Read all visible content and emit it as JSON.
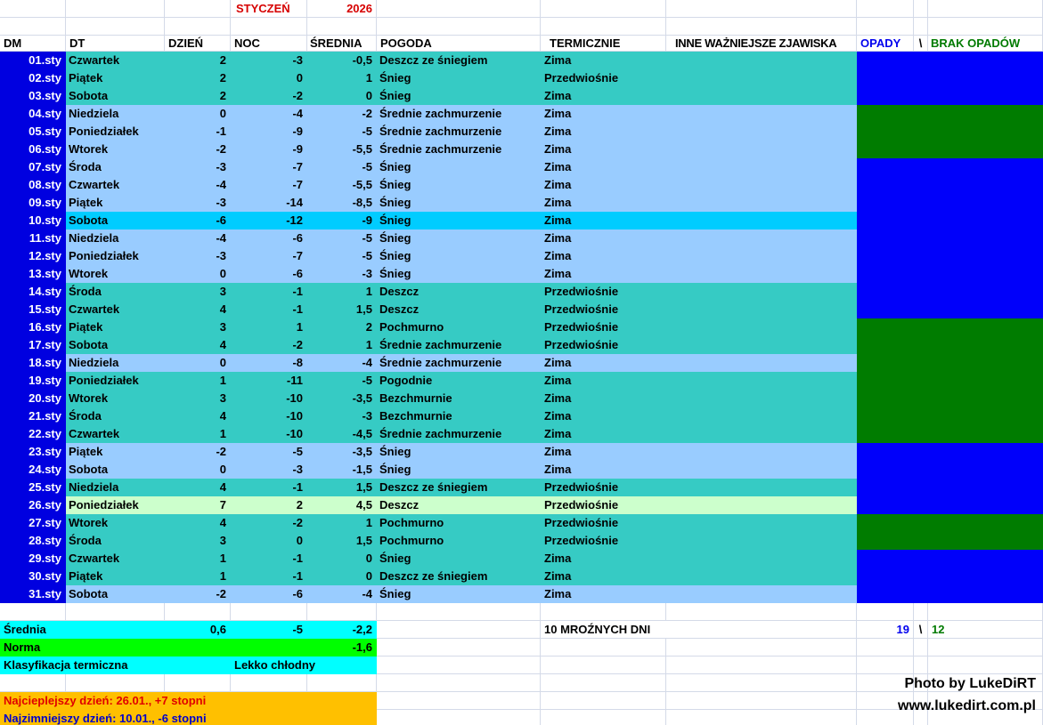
{
  "title": {
    "month": "STYCZEŃ",
    "year": "2026"
  },
  "columns": {
    "dm": "DM",
    "dt": "DT",
    "day": "DZIEŃ",
    "night": "NOC",
    "avg": "ŚREDNIA",
    "weather": "POGODA",
    "thermal": "TERMICZNIE",
    "other": "INNE WAŻNIEJSZE ZJAWISKA",
    "precip": "OPADY",
    "sep": "\\",
    "no_precip": "BRAK OPADÓW"
  },
  "days": [
    {
      "dm": "01.sty",
      "dt": "Czwartek",
      "day": "2",
      "night": "-3",
      "avg": "-0,5",
      "weather": "Deszcz ze śniegiem",
      "thermal": "Zima",
      "row": "teal",
      "precip": "rain"
    },
    {
      "dm": "02.sty",
      "dt": "Piątek",
      "day": "2",
      "night": "0",
      "avg": "1",
      "weather": "Śnieg",
      "thermal": "Przedwiośnie",
      "row": "teal",
      "precip": "rain"
    },
    {
      "dm": "03.sty",
      "dt": "Sobota",
      "day": "2",
      "night": "-2",
      "avg": "0",
      "weather": "Śnieg",
      "thermal": "Zima",
      "row": "teal",
      "precip": "rain"
    },
    {
      "dm": "04.sty",
      "dt": "Niedziela",
      "day": "0",
      "night": "-4",
      "avg": "-2",
      "weather": "Średnie zachmurzenie",
      "thermal": "Zima",
      "row": "lightblue",
      "precip": "dry"
    },
    {
      "dm": "05.sty",
      "dt": "Poniedziałek",
      "day": "-1",
      "night": "-9",
      "avg": "-5",
      "weather": "Średnie zachmurzenie",
      "thermal": "Zima",
      "row": "lightblue",
      "precip": "dry"
    },
    {
      "dm": "06.sty",
      "dt": "Wtorek",
      "day": "-2",
      "night": "-9",
      "avg": "-5,5",
      "weather": "Średnie zachmurzenie",
      "thermal": "Zima",
      "row": "lightblue",
      "precip": "dry"
    },
    {
      "dm": "07.sty",
      "dt": "Środa",
      "day": "-3",
      "night": "-7",
      "avg": "-5",
      "weather": "Śnieg",
      "thermal": "Zima",
      "row": "lightblue",
      "precip": "rain"
    },
    {
      "dm": "08.sty",
      "dt": "Czwartek",
      "day": "-4",
      "night": "-7",
      "avg": "-5,5",
      "weather": "Śnieg",
      "thermal": "Zima",
      "row": "lightblue",
      "precip": "rain"
    },
    {
      "dm": "09.sty",
      "dt": "Piątek",
      "day": "-3",
      "night": "-14",
      "avg": "-8,5",
      "weather": "Śnieg",
      "thermal": "Zima",
      "row": "lightblue",
      "precip": "rain"
    },
    {
      "dm": "10.sty",
      "dt": "Sobota",
      "day": "-6",
      "night": "-12",
      "avg": "-9",
      "weather": "Śnieg",
      "thermal": "Zima",
      "row": "cyan",
      "precip": "rain"
    },
    {
      "dm": "11.sty",
      "dt": "Niedziela",
      "day": "-4",
      "night": "-6",
      "avg": "-5",
      "weather": "Śnieg",
      "thermal": "Zima",
      "row": "lightblue",
      "precip": "rain"
    },
    {
      "dm": "12.sty",
      "dt": "Poniedziałek",
      "day": "-3",
      "night": "-7",
      "avg": "-5",
      "weather": "Śnieg",
      "thermal": "Zima",
      "row": "lightblue",
      "precip": "rain"
    },
    {
      "dm": "13.sty",
      "dt": "Wtorek",
      "day": "0",
      "night": "-6",
      "avg": "-3",
      "weather": "Śnieg",
      "thermal": "Zima",
      "row": "lightblue",
      "precip": "rain"
    },
    {
      "dm": "14.sty",
      "dt": "Środa",
      "day": "3",
      "night": "-1",
      "avg": "1",
      "weather": "Deszcz",
      "thermal": "Przedwiośnie",
      "row": "teal",
      "precip": "rain"
    },
    {
      "dm": "15.sty",
      "dt": "Czwartek",
      "day": "4",
      "night": "-1",
      "avg": "1,5",
      "weather": "Deszcz",
      "thermal": "Przedwiośnie",
      "row": "teal",
      "precip": "rain"
    },
    {
      "dm": "16.sty",
      "dt": "Piątek",
      "day": "3",
      "night": "1",
      "avg": "2",
      "weather": "Pochmurno",
      "thermal": "Przedwiośnie",
      "row": "teal",
      "precip": "dry"
    },
    {
      "dm": "17.sty",
      "dt": "Sobota",
      "day": "4",
      "night": "-2",
      "avg": "1",
      "weather": "Średnie zachmurzenie",
      "thermal": "Przedwiośnie",
      "row": "teal",
      "precip": "dry"
    },
    {
      "dm": "18.sty",
      "dt": "Niedziela",
      "day": "0",
      "night": "-8",
      "avg": "-4",
      "weather": "Średnie zachmurzenie",
      "thermal": "Zima",
      "row": "lightblue",
      "precip": "dry"
    },
    {
      "dm": "19.sty",
      "dt": "Poniedziałek",
      "day": "1",
      "night": "-11",
      "avg": "-5",
      "weather": "Pogodnie",
      "thermal": "Zima",
      "row": "teal",
      "precip": "dry"
    },
    {
      "dm": "20.sty",
      "dt": "Wtorek",
      "day": "3",
      "night": "-10",
      "avg": "-3,5",
      "weather": "Bezchmurnie",
      "thermal": "Zima",
      "row": "teal",
      "precip": "dry"
    },
    {
      "dm": "21.sty",
      "dt": "Środa",
      "day": "4",
      "night": "-10",
      "avg": "-3",
      "weather": "Bezchmurnie",
      "thermal": "Zima",
      "row": "teal",
      "precip": "dry"
    },
    {
      "dm": "22.sty",
      "dt": "Czwartek",
      "day": "1",
      "night": "-10",
      "avg": "-4,5",
      "weather": "Średnie zachmurzenie",
      "thermal": "Zima",
      "row": "teal",
      "precip": "dry"
    },
    {
      "dm": "23.sty",
      "dt": "Piątek",
      "day": "-2",
      "night": "-5",
      "avg": "-3,5",
      "weather": "Śnieg",
      "thermal": "Zima",
      "row": "lightblue",
      "precip": "rain"
    },
    {
      "dm": "24.sty",
      "dt": "Sobota",
      "day": "0",
      "night": "-3",
      "avg": "-1,5",
      "weather": "Śnieg",
      "thermal": "Zima",
      "row": "lightblue",
      "precip": "rain"
    },
    {
      "dm": "25.sty",
      "dt": "Niedziela",
      "day": "4",
      "night": "-1",
      "avg": "1,5",
      "weather": "Deszcz ze śniegiem",
      "thermal": "Przedwiośnie",
      "row": "teal",
      "precip": "rain"
    },
    {
      "dm": "26.sty",
      "dt": "Poniedziałek",
      "day": "7",
      "night": "2",
      "avg": "4,5",
      "weather": "Deszcz",
      "thermal": "Przedwiośnie",
      "row": "lightgreen",
      "precip": "rain"
    },
    {
      "dm": "27.sty",
      "dt": "Wtorek",
      "day": "4",
      "night": "-2",
      "avg": "1",
      "weather": "Pochmurno",
      "thermal": "Przedwiośnie",
      "row": "teal",
      "precip": "dry"
    },
    {
      "dm": "28.sty",
      "dt": "Środa",
      "day": "3",
      "night": "0",
      "avg": "1,5",
      "weather": "Pochmurno",
      "thermal": "Przedwiośnie",
      "row": "teal",
      "precip": "dry"
    },
    {
      "dm": "29.sty",
      "dt": "Czwartek",
      "day": "1",
      "night": "-1",
      "avg": "0",
      "weather": "Śnieg",
      "thermal": "Zima",
      "row": "teal",
      "precip": "rain"
    },
    {
      "dm": "30.sty",
      "dt": "Piątek",
      "day": "1",
      "night": "-1",
      "avg": "0",
      "weather": "Deszcz ze śniegiem",
      "thermal": "Zima",
      "row": "teal",
      "precip": "rain"
    },
    {
      "dm": "31.sty",
      "dt": "Sobota",
      "day": "-2",
      "night": "-6",
      "avg": "-4",
      "weather": "Śnieg",
      "thermal": "Zima",
      "row": "lightblue",
      "precip": "rain"
    }
  ],
  "summary": {
    "average_label": "Średnia",
    "average_day": "0,6",
    "average_night": "-5",
    "average_avg": "-2,2",
    "norm_label": "Norma",
    "norm_value": "-1,6",
    "classification_label": "Klasyfikacja termiczna",
    "classification_value": "Lekko chłodny",
    "frost_days": "10 MROŹNYCH DNI",
    "precip_days": "19",
    "precip_sep": "\\",
    "dry_days": "12",
    "warmest": "Najcieplejszy dzień: 26.01., +7 stopni",
    "coldest": "Najzimniejszy dzień: 10.01., -6 stopni"
  },
  "footer": {
    "credit": "Photo by LukeDiRT",
    "website": "www.lukedirt.com.pl"
  },
  "colors": {
    "dm_column": "#0000e0",
    "row_teal": "#36cbc4",
    "row_lightblue": "#99ccff",
    "row_coldest": "#00ccff",
    "row_warmest": "#ccffcc",
    "precip_blue": "#0000fa",
    "dry_green": "#007c00",
    "summary_cyan": "#00ffff",
    "norm_green": "#00ff00",
    "note_orange": "#ffc000",
    "title_red": "#d60000",
    "precip_label": "#0000ee",
    "dry_label": "#007a00",
    "warmest_text": "#e00000",
    "coldest_text": "#0000cc",
    "gridline": "#d4dae8"
  }
}
